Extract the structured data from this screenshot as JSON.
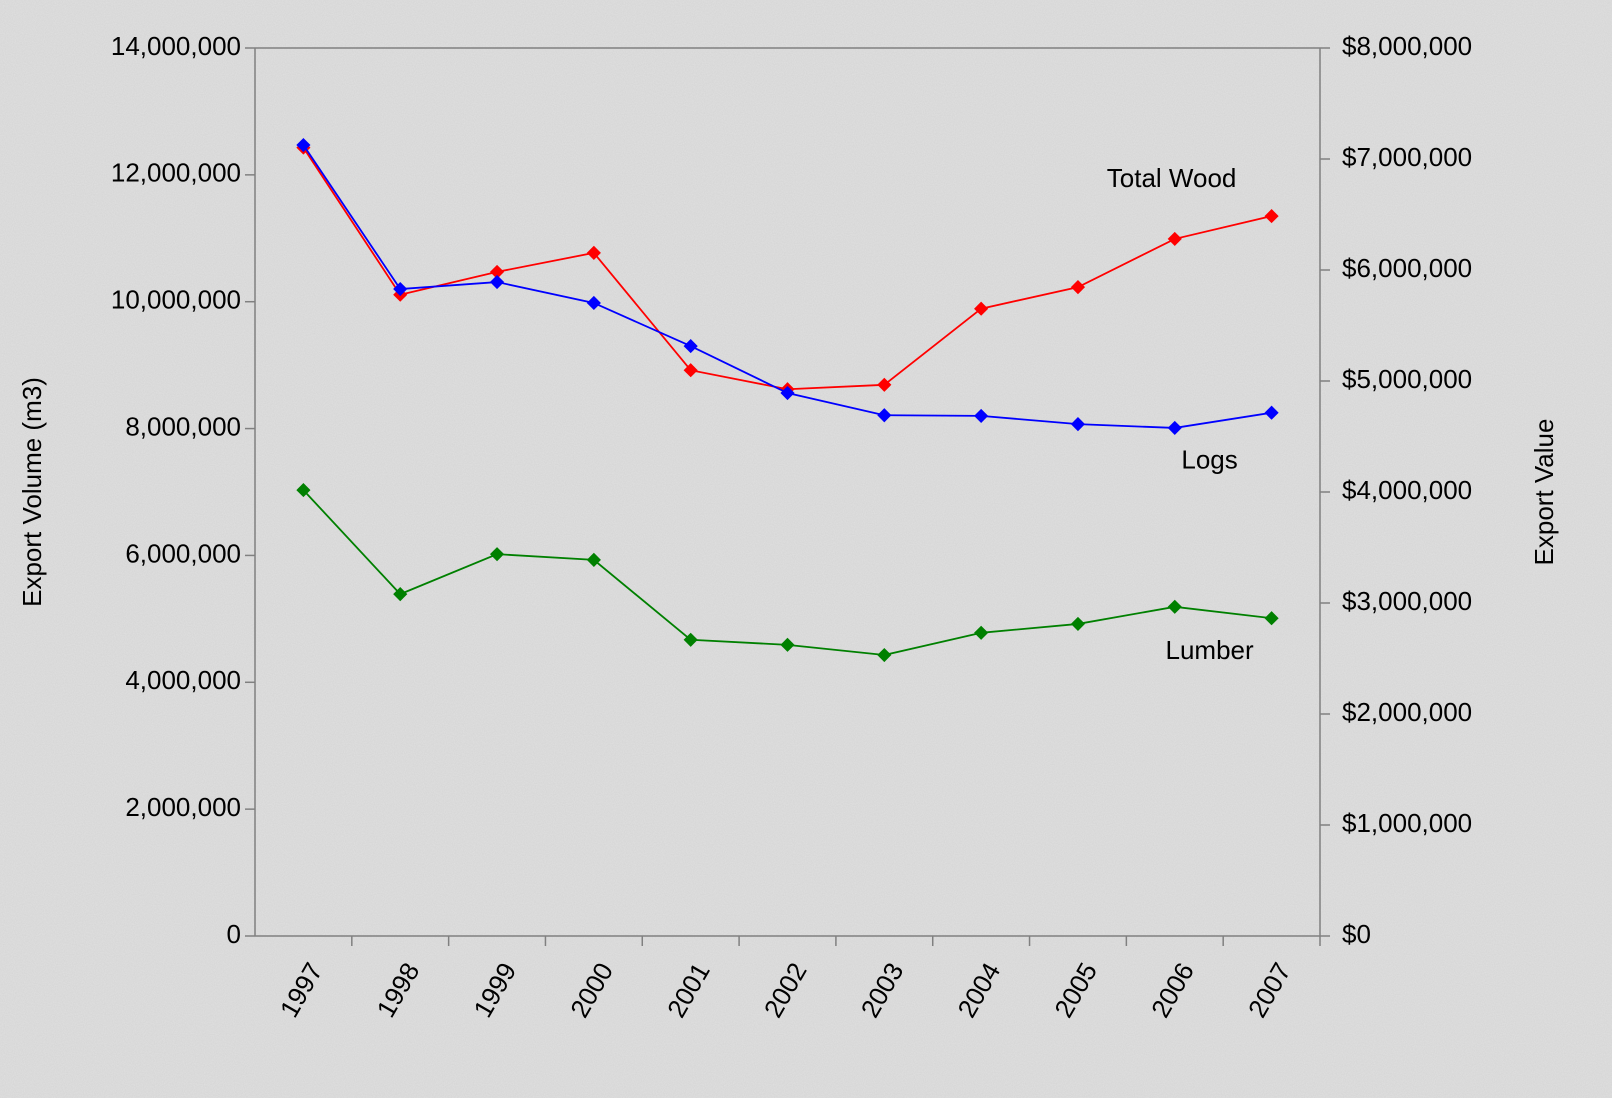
{
  "chart_data": {
    "type": "line",
    "y_label": "Export Volume (m3)",
    "y2_label": "Export Value",
    "categories": [
      "1997",
      "1998",
      "1999",
      "2000",
      "2001",
      "2002",
      "2003",
      "2004",
      "2005",
      "2006",
      "2007"
    ],
    "series": [
      {
        "name": "Total Wood",
        "color": "#ff0000",
        "values": [
          12430000,
          10110000,
          10470000,
          10770000,
          8920000,
          8620000,
          8690000,
          9890000,
          10230000,
          10990000,
          11350000
        ]
      },
      {
        "name": "Logs",
        "color": "#0000ff",
        "values": [
          12470000,
          10200000,
          10310000,
          9980000,
          9300000,
          8560000,
          8210000,
          8200000,
          8070000,
          8010000,
          8250000
        ]
      },
      {
        "name": "Lumber",
        "color": "#008000",
        "values": [
          7030000,
          5390000,
          6020000,
          5930000,
          4670000,
          4590000,
          4430000,
          4780000,
          4920000,
          5190000,
          5010000
        ]
      }
    ],
    "ylim": [
      0,
      14000000
    ],
    "yticks": [
      {
        "value": 0,
        "label": "0"
      },
      {
        "value": 2000000,
        "label": "2,000,000"
      },
      {
        "value": 4000000,
        "label": "4,000,000"
      },
      {
        "value": 6000000,
        "label": "6,000,000"
      },
      {
        "value": 8000000,
        "label": "8,000,000"
      },
      {
        "value": 10000000,
        "label": "10,000,000"
      },
      {
        "value": 12000000,
        "label": "12,000,000"
      },
      {
        "value": 14000000,
        "label": "14,000,000"
      }
    ],
    "y2lim": [
      0,
      8000000
    ],
    "y2ticks": [
      {
        "value": 0,
        "label": "$0"
      },
      {
        "value": 1000000,
        "label": "$1,000,000"
      },
      {
        "value": 2000000,
        "label": "$2,000,000"
      },
      {
        "value": 3000000,
        "label": "$3,000,000"
      },
      {
        "value": 4000000,
        "label": "$4,000,000"
      },
      {
        "value": 5000000,
        "label": "$5,000,000"
      },
      {
        "value": 6000000,
        "label": "$6,000,000"
      },
      {
        "value": 7000000,
        "label": "$7,000,000"
      },
      {
        "value": 8000000,
        "label": "$8,000,000"
      }
    ],
    "grid": false
  }
}
